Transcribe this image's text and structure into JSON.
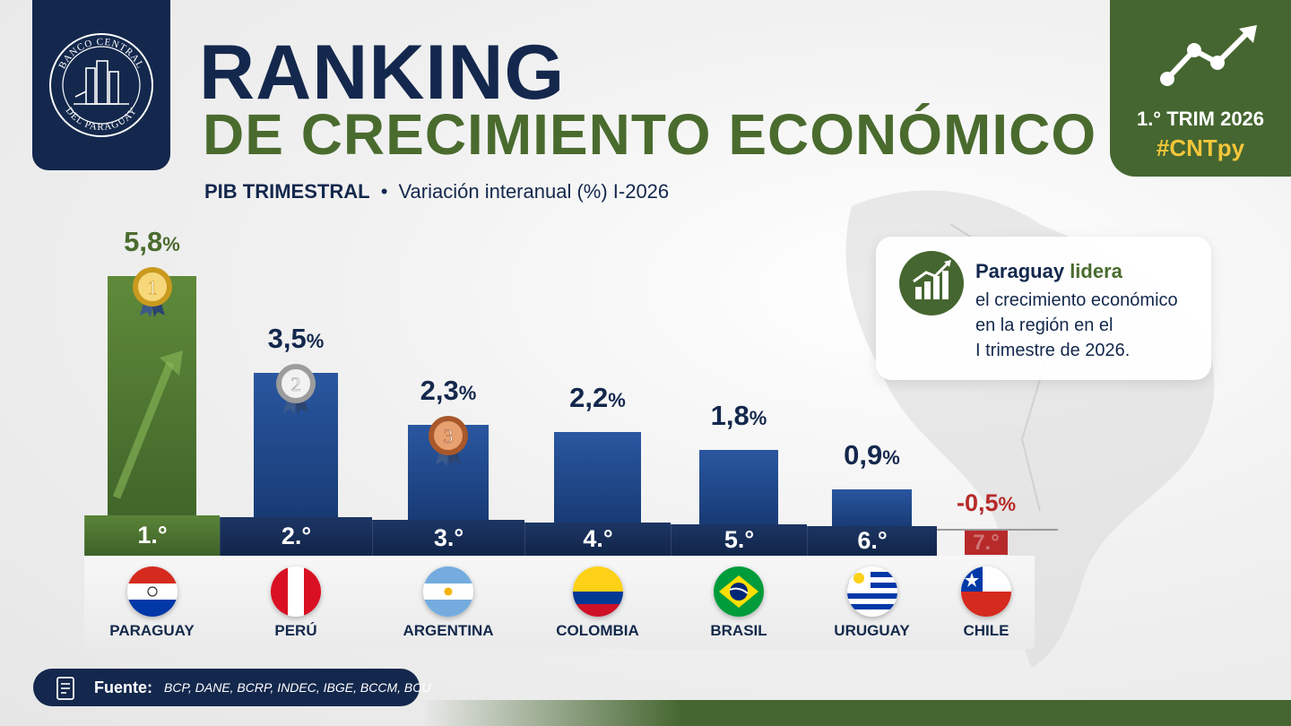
{
  "logo": {
    "top_text": "BANCO CENTRAL",
    "bottom_text": "DEL PARAGUAY"
  },
  "header": {
    "title": "RANKING",
    "title_line2": "DE CRECIMIENTO ECONÓMICO",
    "subtitle_bold": "PIB TRIMESTRAL",
    "subtitle_separator": "•",
    "subtitle_rest": "Variación interanual (%) I-2026"
  },
  "corner": {
    "period": "1.° TRIM 2026",
    "hashtag": "#CNTpy",
    "icon": "trend-line-icon"
  },
  "info_card": {
    "icon": "bar-chart-growth-icon",
    "title_a": "Paraguay",
    "title_b": "lidera",
    "line1": "el crecimiento económico",
    "line2": "en la región en el",
    "line3": "I trimestre de 2026."
  },
  "colors": {
    "navy": "#14284d",
    "green": "#4a6b2e",
    "bar_blue": "#1f4687",
    "negative_red": "#b72a2a",
    "gold": "#f3c63a"
  },
  "chart_data": {
    "type": "bar",
    "title": "RANKING DE CRECIMIENTO ECONÓMICO",
    "subtitle": "PIB TRIMESTRAL • Variación interanual (%) I-2026",
    "categories": [
      "PARAGUAY",
      "PERÚ",
      "ARGENTINA",
      "COLOMBIA",
      "BRASIL",
      "URUGUAY",
      "CHILE"
    ],
    "values": [
      5.8,
      3.5,
      2.3,
      2.2,
      1.8,
      0.9,
      -0.5
    ],
    "value_labels": [
      "5,8",
      "3,5",
      "2,3",
      "2,2",
      "1,8",
      "0,9",
      "-0,5"
    ],
    "unit": "%",
    "ranks": [
      "1.°",
      "2.°",
      "3.°",
      "4.°",
      "5.°",
      "6.°",
      "7.°"
    ],
    "medals": [
      "1",
      "2",
      "3",
      "",
      "",
      "",
      ""
    ],
    "ylim": [
      -0.5,
      5.8
    ],
    "grid": false,
    "legend": "none"
  },
  "source": {
    "label": "Fuente:",
    "text": "BCP, DANE, BCRP, INDEC, IBGE, BCCM, BCU"
  }
}
